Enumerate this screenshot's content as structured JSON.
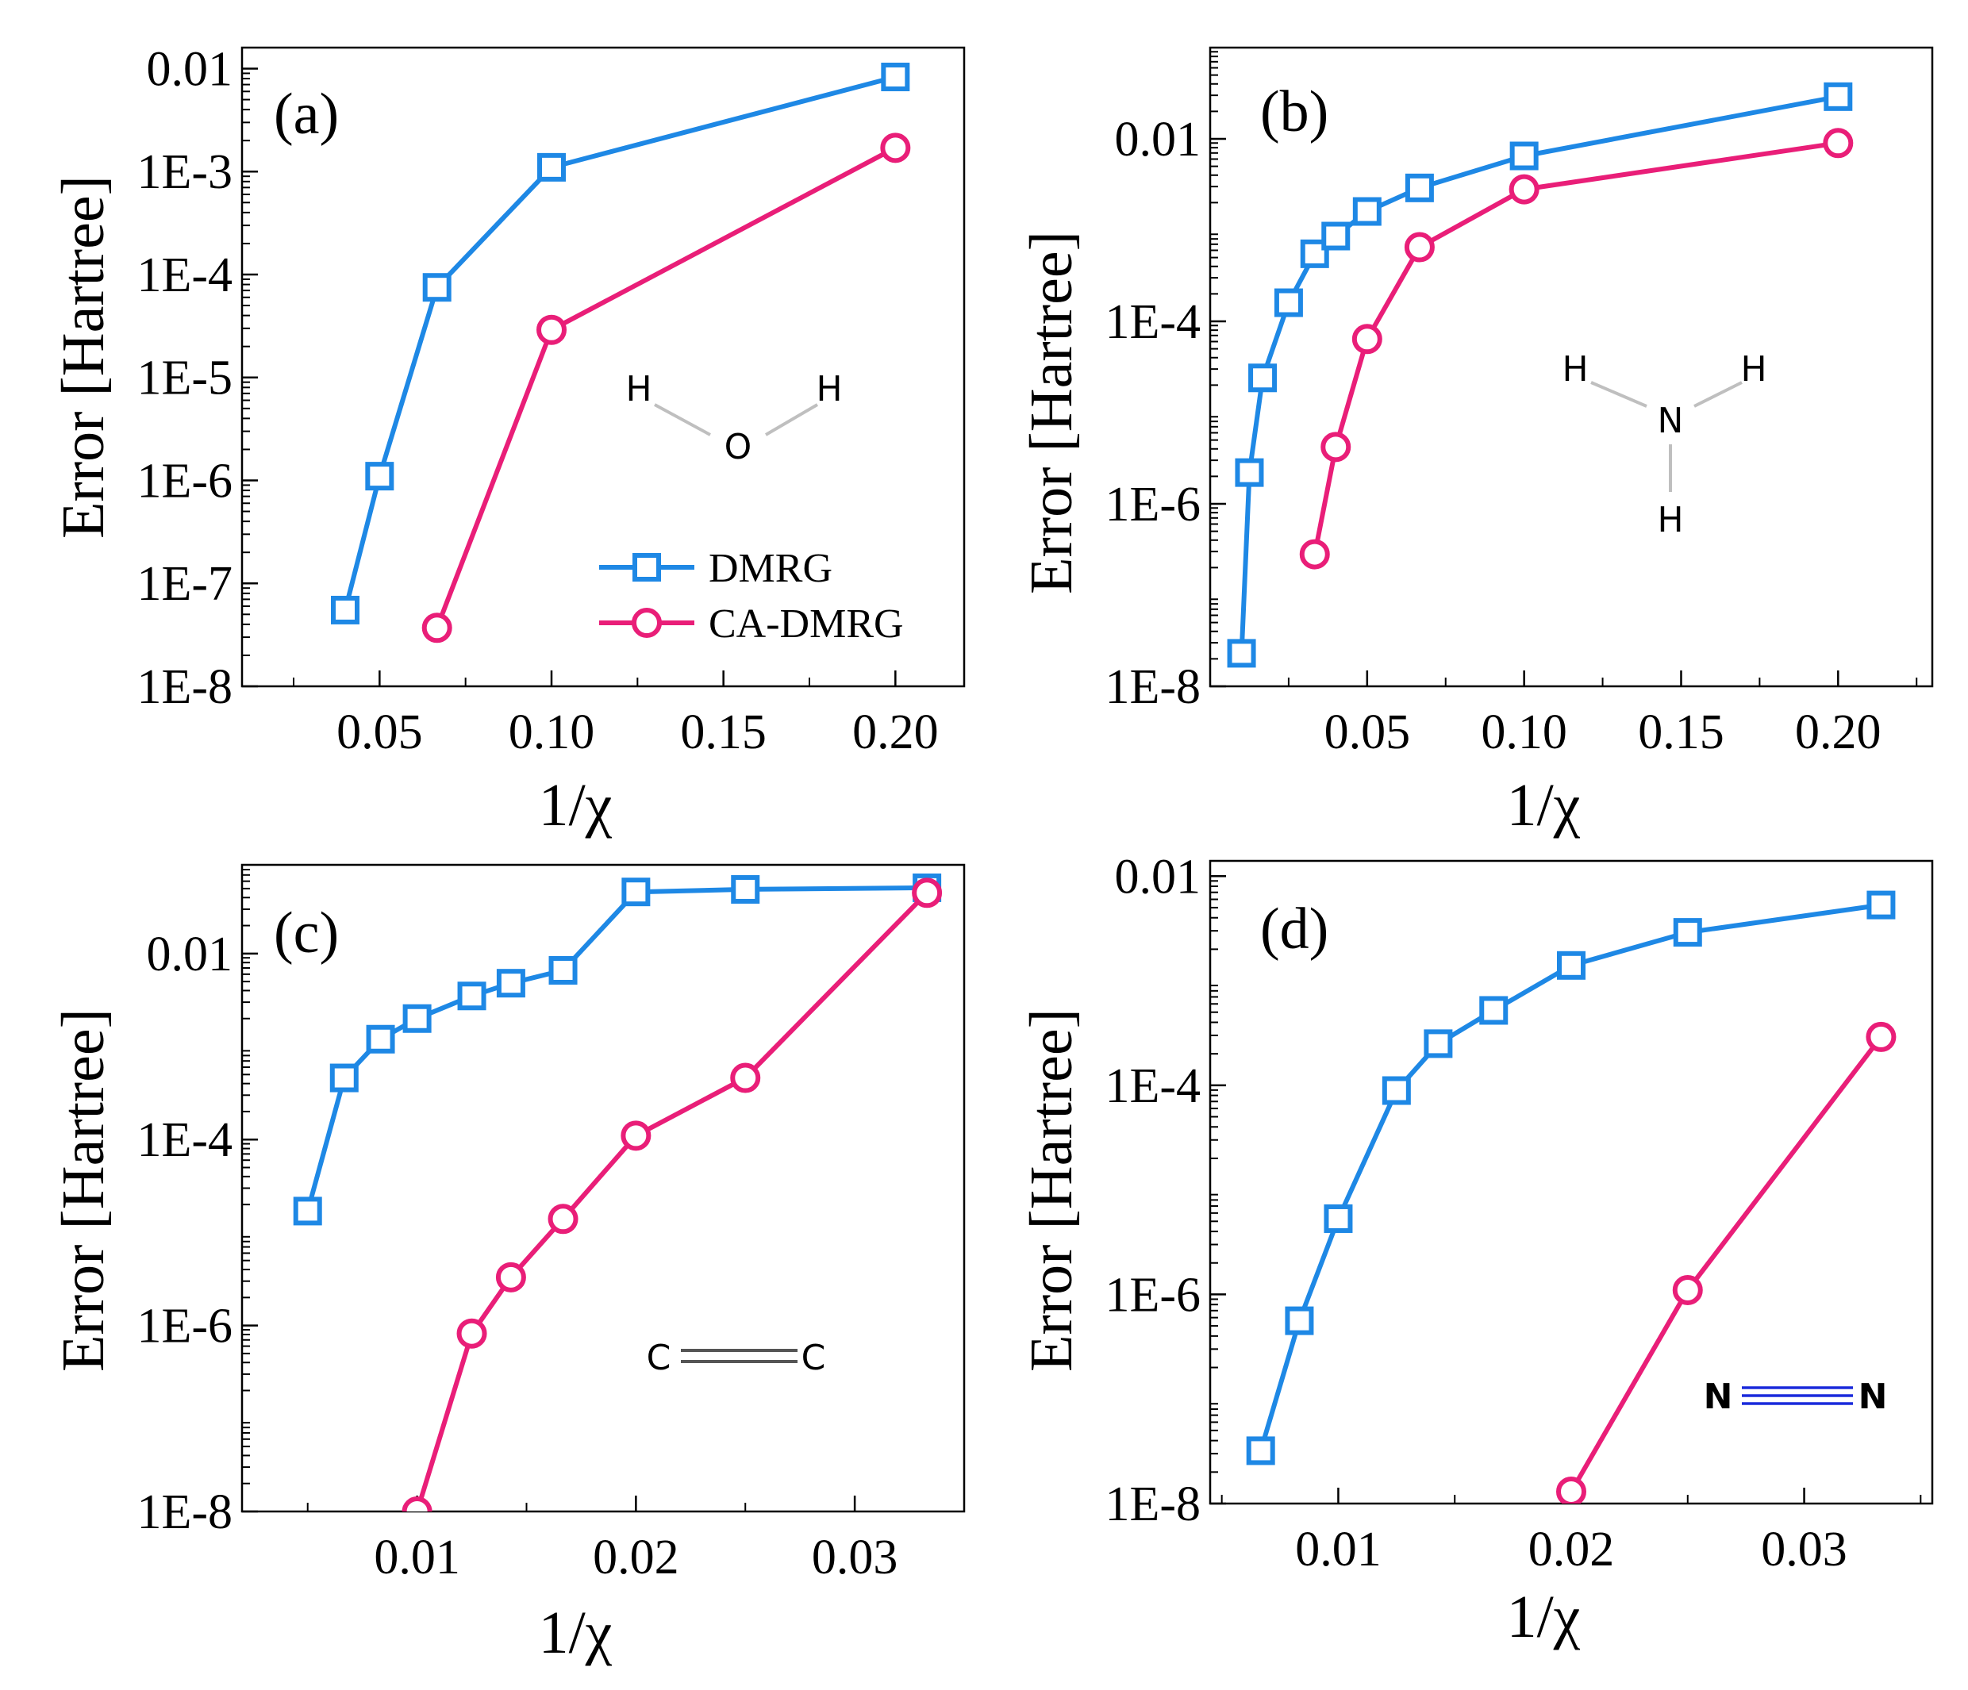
{
  "colors": {
    "dmrg": "#1E88E5",
    "ca_dmrg": "#E91E78",
    "hydrogen_atom": "#5F7F7A",
    "oxygen_atom": "#FF2A1A",
    "nitrogen_atom": "#1A2ADB",
    "carbon_atom": "#2F4F4F"
  },
  "legend": {
    "dmrg": "DMRG",
    "ca_dmrg": "CA-DMRG"
  },
  "molecules": {
    "a": {
      "left": "H",
      "right": "H",
      "center": "O"
    },
    "b": {
      "left": "H",
      "right": "H",
      "center": "N",
      "bottom": "H"
    },
    "c": {
      "left": "C",
      "right": "C"
    },
    "d": {
      "left": "N",
      "right": "N"
    }
  },
  "chart_data": [
    {
      "id": "a",
      "type": "line",
      "panel_label": "(a)",
      "xlabel": "1/χ",
      "ylabel": "Error [Hartree]",
      "yscale": "log",
      "xlim": [
        0.01,
        0.22
      ],
      "ylim": [
        1e-08,
        0.016
      ],
      "xticks": [
        0.05,
        0.1,
        0.15,
        0.2
      ],
      "xtick_labels": [
        "0.05",
        "0.10",
        "0.15",
        "0.20"
      ],
      "yticks": [
        1e-08,
        1e-07,
        1e-06,
        1e-05,
        0.0001,
        0.001,
        0.01
      ],
      "ytick_labels": [
        "1E-8",
        "1E-7",
        "1E-6",
        "1E-5",
        "1E-4",
        "1E-3",
        "0.01"
      ],
      "legend": "inside-lower-right",
      "series": [
        {
          "name": "DMRG",
          "marker": "square",
          "x": [
            0.04,
            0.05,
            0.0667,
            0.1,
            0.2
          ],
          "y": [
            5.5e-08,
            1.1e-06,
            7.5e-05,
            0.0011,
            0.0083
          ]
        },
        {
          "name": "CA-DMRG",
          "marker": "circle",
          "x": [
            0.0667,
            0.1,
            0.2
          ],
          "y": [
            3.7e-08,
            2.9e-05,
            0.0017
          ]
        }
      ]
    },
    {
      "id": "b",
      "type": "line",
      "panel_label": "(b)",
      "xlabel": "1/χ",
      "ylabel": "Error [Hartree]",
      "yscale": "log",
      "xlim": [
        0.0,
        0.23
      ],
      "ylim": [
        1e-08,
        0.1
      ],
      "xticks": [
        0.05,
        0.1,
        0.15,
        0.2
      ],
      "xtick_labels": [
        "0.05",
        "0.10",
        "0.15",
        "0.20"
      ],
      "yticks": [
        1e-08,
        1e-06,
        0.0001,
        0.01
      ],
      "ytick_labels": [
        "1E-8",
        "1E-6",
        "1E-4",
        "0.01"
      ],
      "series": [
        {
          "name": "DMRG",
          "marker": "square",
          "x": [
            0.01,
            0.0125,
            0.0167,
            0.025,
            0.0333,
            0.04,
            0.05,
            0.0667,
            0.1,
            0.2
          ],
          "y": [
            2.3e-08,
            2.2e-06,
            2.4e-05,
            0.00016,
            0.00055,
            0.00086,
            0.0016,
            0.0029,
            0.0065,
            0.029
          ]
        },
        {
          "name": "CA-DMRG",
          "marker": "circle",
          "x": [
            0.0333,
            0.04,
            0.05,
            0.0667,
            0.1,
            0.2
          ],
          "y": [
            2.8e-07,
            4.2e-06,
            6.4e-05,
            0.00065,
            0.0028,
            0.009
          ]
        }
      ]
    },
    {
      "id": "c",
      "type": "line",
      "panel_label": "(c)",
      "xlabel": "1/χ",
      "ylabel": "Error [Hartree]",
      "yscale": "log",
      "xlim": [
        0.002,
        0.035
      ],
      "ylim": [
        1e-08,
        0.09
      ],
      "xticks": [
        0.01,
        0.02,
        0.03
      ],
      "xtick_labels": [
        "0.01",
        "0.02",
        "0.03"
      ],
      "yticks": [
        1e-08,
        1e-06,
        0.0001,
        0.01
      ],
      "ytick_labels": [
        "1E-8",
        "1E-6",
        "1E-4",
        "0.01"
      ],
      "series": [
        {
          "name": "DMRG",
          "marker": "square",
          "x": [
            0.005,
            0.00667,
            0.00833,
            0.01,
            0.0125,
            0.01429,
            0.01667,
            0.02,
            0.025,
            0.0333
          ],
          "y": [
            1.7e-05,
            0.00046,
            0.0012,
            0.002,
            0.0035,
            0.0048,
            0.0066,
            0.046,
            0.049,
            0.051
          ]
        },
        {
          "name": "CA-DMRG",
          "marker": "circle",
          "x": [
            0.01,
            0.0125,
            0.01429,
            0.01667,
            0.02,
            0.025,
            0.0333
          ],
          "y": [
            1e-08,
            8.2e-07,
            3.3e-06,
            1.4e-05,
            0.00011,
            0.00046,
            0.045
          ]
        }
      ]
    },
    {
      "id": "d",
      "type": "line",
      "panel_label": "(d)",
      "xlabel": "1/χ",
      "ylabel": "Error [Hartree]",
      "yscale": "log",
      "xlim": [
        0.0045,
        0.0355
      ],
      "ylim": [
        1e-08,
        0.014
      ],
      "xticks": [
        0.01,
        0.02,
        0.03
      ],
      "xtick_labels": [
        "0.01",
        "0.02",
        "0.03"
      ],
      "yticks": [
        1e-08,
        1e-06,
        0.0001,
        0.01
      ],
      "ytick_labels": [
        "1E-8",
        "1E-6",
        "1E-4",
        "0.01"
      ],
      "series": [
        {
          "name": "DMRG",
          "marker": "square",
          "x": [
            0.00667,
            0.00833,
            0.01,
            0.0125,
            0.01429,
            0.01667,
            0.02,
            0.025,
            0.0333
          ],
          "y": [
            3.2e-08,
            5.6e-07,
            5.3e-06,
            8.9e-05,
            0.00025,
            0.00052,
            0.0014,
            0.0029,
            0.0053
          ]
        },
        {
          "name": "CA-DMRG",
          "marker": "circle",
          "x": [
            0.02,
            0.025,
            0.0333
          ],
          "y": [
            1.3e-08,
            1.1e-06,
            0.00029
          ]
        }
      ]
    }
  ]
}
